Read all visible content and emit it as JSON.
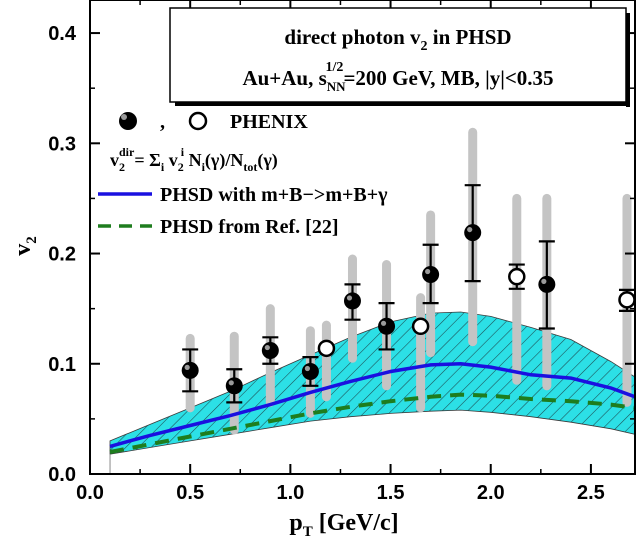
{
  "chart_data": {
    "type": "scatter",
    "title_box": {
      "line1_main": "direct photon v",
      "line1_sub": "2",
      "line1_tail": " in PHSD",
      "line2_pre": "Au+Au, s",
      "line2_sub": "NN",
      "line2_sup": "1/2",
      "line2_tail": "=200 GeV, MB, |y|<0.35"
    },
    "xlabel": {
      "main": "p",
      "sub": "T",
      "tail": " [GeV/c]"
    },
    "ylabel": {
      "main": "v",
      "sub": "2"
    },
    "xlim": [
      0.0,
      2.72
    ],
    "ylim": [
      0.0,
      0.43
    ],
    "x_ticks": [
      "0.0",
      "0.5",
      "1.0",
      "1.5",
      "2.0",
      "2.5"
    ],
    "x_tick_values": [
      0.0,
      0.5,
      1.0,
      1.5,
      2.0,
      2.5
    ],
    "y_ticks": [
      "0.0",
      "0.1",
      "0.2",
      "0.3",
      "0.4"
    ],
    "y_tick_values": [
      0.0,
      0.1,
      0.2,
      0.3,
      0.4
    ],
    "legend": {
      "phenix": {
        "sep": ",",
        "label": "PHENIX"
      },
      "formula": {
        "a": "v",
        "a_sub": "2",
        "a_sup": "dir",
        "b": "= Σ",
        "b_sub": "i",
        "c": " v",
        "c_sub": "2",
        "c_sup": "i",
        "d": " N",
        "d_sub": "i",
        "e": "(γ)/N",
        "e_sub": "tot",
        "f": "(γ)"
      },
      "solid": "PHSD with m+B−>m+B+γ",
      "dashed": "PHSD from Ref. [22]"
    },
    "colors": {
      "solid": "#1a10e0",
      "dashed": "#1e7d1e",
      "band_fill": "#2ce0e6",
      "band_edge": "#3a3a3a",
      "syst": "#c4c4c4",
      "marker": "#000000"
    },
    "series": [
      {
        "marker": "filled",
        "points": [
          {
            "x": 0.5,
            "y": 0.094,
            "lo": 0.075,
            "hi": 0.113,
            "slo": 0.06,
            "shi": 0.123
          },
          {
            "x": 0.72,
            "y": 0.08,
            "lo": 0.065,
            "hi": 0.095,
            "slo": 0.04,
            "shi": 0.125
          },
          {
            "x": 0.9,
            "y": 0.112,
            "lo": 0.1,
            "hi": 0.124,
            "slo": 0.065,
            "shi": 0.15
          },
          {
            "x": 1.1,
            "y": 0.093,
            "lo": 0.08,
            "hi": 0.106,
            "slo": 0.055,
            "shi": 0.13
          },
          {
            "x": 1.31,
            "y": 0.157,
            "lo": 0.14,
            "hi": 0.172,
            "slo": 0.105,
            "shi": 0.195
          },
          {
            "x": 1.48,
            "y": 0.134,
            "lo": 0.113,
            "hi": 0.155,
            "slo": 0.08,
            "shi": 0.19
          },
          {
            "x": 1.7,
            "y": 0.181,
            "lo": 0.155,
            "hi": 0.208,
            "slo": 0.11,
            "shi": 0.235
          },
          {
            "x": 1.91,
            "y": 0.219,
            "lo": 0.175,
            "hi": 0.262,
            "slo": 0.12,
            "shi": 0.31
          },
          {
            "x": 2.28,
            "y": 0.172,
            "lo": 0.132,
            "hi": 0.211,
            "slo": 0.08,
            "shi": 0.25
          }
        ]
      },
      {
        "marker": "open",
        "points": [
          {
            "x": 1.18,
            "y": 0.114,
            "lo": 0.114,
            "hi": 0.114,
            "slo": 0.07,
            "shi": 0.135
          },
          {
            "x": 1.65,
            "y": 0.134,
            "lo": 0.134,
            "hi": 0.134,
            "slo": 0.06,
            "shi": 0.16
          },
          {
            "x": 2.13,
            "y": 0.179,
            "lo": 0.168,
            "hi": 0.19,
            "slo": 0.085,
            "shi": 0.25
          },
          {
            "x": 2.68,
            "y": 0.158,
            "lo": 0.148,
            "hi": 0.167,
            "slo": 0.065,
            "shi": 0.25
          }
        ]
      }
    ],
    "band": {
      "x": [
        0.1,
        0.3,
        0.5,
        0.7,
        0.9,
        1.1,
        1.3,
        1.5,
        1.7,
        1.85,
        2.0,
        2.2,
        2.4,
        2.6,
        2.72
      ],
      "upper": [
        0.03,
        0.045,
        0.06,
        0.075,
        0.092,
        0.108,
        0.124,
        0.138,
        0.146,
        0.147,
        0.143,
        0.133,
        0.122,
        0.102,
        0.088
      ],
      "lower": [
        0.018,
        0.024,
        0.03,
        0.036,
        0.042,
        0.048,
        0.052,
        0.055,
        0.057,
        0.058,
        0.056,
        0.052,
        0.047,
        0.041,
        0.036
      ]
    },
    "curve_solid": {
      "x": [
        0.1,
        0.3,
        0.5,
        0.7,
        0.9,
        1.1,
        1.3,
        1.5,
        1.7,
        1.85,
        2.0,
        2.2,
        2.4,
        2.6,
        2.72
      ],
      "y": [
        0.025,
        0.035,
        0.044,
        0.053,
        0.063,
        0.074,
        0.084,
        0.093,
        0.099,
        0.1,
        0.097,
        0.09,
        0.087,
        0.078,
        0.07
      ]
    },
    "curve_dashed": {
      "x": [
        0.1,
        0.3,
        0.5,
        0.7,
        0.9,
        1.1,
        1.3,
        1.5,
        1.7,
        1.85,
        2.0,
        2.2,
        2.4,
        2.6,
        2.72
      ],
      "y": [
        0.02,
        0.027,
        0.034,
        0.041,
        0.048,
        0.055,
        0.061,
        0.066,
        0.07,
        0.072,
        0.071,
        0.068,
        0.066,
        0.063,
        0.06
      ]
    }
  }
}
